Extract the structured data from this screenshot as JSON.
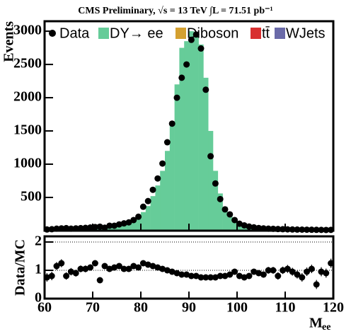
{
  "chart_data": {
    "type": "histogram",
    "title": "CMS Preliminary, √s = 13 TeV ∫L = 71.51 pb⁻¹",
    "y_label": "Events",
    "x_label": "M",
    "x_label_sub": "ee",
    "ratio_label": "Data/MC",
    "bins": [
      60,
      61,
      62,
      63,
      64,
      65,
      66,
      67,
      68,
      69,
      70,
      71,
      72,
      73,
      74,
      75,
      76,
      77,
      78,
      79,
      80,
      81,
      82,
      83,
      84,
      85,
      86,
      87,
      88,
      89,
      90,
      91,
      92,
      93,
      94,
      95,
      96,
      97,
      98,
      99,
      100,
      101,
      102,
      103,
      104,
      105,
      106,
      107,
      108,
      109,
      110,
      111,
      112,
      113,
      114,
      115,
      116,
      117,
      118,
      119,
      120
    ],
    "series": [
      {
        "name": "Data",
        "color": "#000000",
        "values": [
          18,
          22,
          30,
          35,
          38,
          30,
          35,
          38,
          42,
          48,
          55,
          60,
          45,
          75,
          75,
          95,
          110,
          125,
          160,
          210,
          360,
          445,
          615,
          785,
          1010,
          1330,
          1610,
          2000,
          2300,
          2500,
          2870,
          2950,
          2740,
          2120,
          1120,
          710,
          475,
          320,
          245,
          160,
          105,
          80,
          62,
          50,
          40,
          35,
          30,
          28,
          25,
          22,
          20,
          18,
          17,
          16,
          15,
          14,
          13,
          12,
          11,
          12
        ]
      },
      {
        "name": "DY→ ee",
        "color": "#66cc99",
        "values": [
          25,
          28,
          30,
          30,
          32,
          35,
          38,
          40,
          42,
          45,
          48,
          52,
          58,
          65,
          75,
          85,
          100,
          120,
          150,
          190,
          280,
          370,
          520,
          680,
          900,
          1200,
          1600,
          2200,
          2750,
          2850,
          3000,
          2980,
          2800,
          2300,
          1500,
          900,
          560,
          360,
          250,
          175,
          125,
          95,
          75,
          60,
          50,
          42,
          36,
          32,
          28,
          25,
          22,
          20,
          18,
          17,
          16,
          15,
          14,
          13,
          12,
          12
        ]
      },
      {
        "name": "Diboson",
        "color": "#d4a030"
      },
      {
        "name": "tt̄",
        "color": "#d83030"
      },
      {
        "name": "WJets",
        "color": "#6a6aa8"
      }
    ],
    "ratio_values": [
      0.75,
      0.8,
      1.15,
      1.25,
      0.8,
      0.95,
      0.9,
      1.05,
      1.05,
      1.1,
      1.25,
      0.65,
      1.15,
      1.05,
      1.1,
      1.15,
      1.05,
      1.05,
      1.15,
      1.1,
      1.25,
      1.2,
      1.15,
      1.1,
      1.05,
      1.0,
      0.95,
      0.9,
      0.85,
      0.85,
      0.8,
      0.8,
      0.75,
      0.75,
      0.75,
      0.75,
      0.8,
      0.8,
      0.85,
      0.95,
      0.8,
      0.75,
      0.8,
      0.95,
      0.9,
      0.85,
      1.0,
      1.0,
      0.8,
      1.0,
      1.05,
      0.95,
      0.85,
      0.75,
      0.95,
      1.05,
      0.5,
      0.95,
      0.9,
      1.25
    ],
    "ratio_errors": [
      0.15,
      0.15,
      0.14,
      0.14,
      0.13,
      0.13,
      0.12,
      0.12,
      0.12,
      0.11,
      0.11,
      0.1,
      0.1,
      0.09,
      0.09,
      0.08,
      0.08,
      0.07,
      0.06,
      0.06,
      0.05,
      0.04,
      0.04,
      0.03,
      0.03,
      0.03,
      0.02,
      0.02,
      0.02,
      0.02,
      0.02,
      0.02,
      0.02,
      0.02,
      0.02,
      0.03,
      0.04,
      0.04,
      0.05,
      0.06,
      0.07,
      0.08,
      0.09,
      0.1,
      0.1,
      0.11,
      0.12,
      0.12,
      0.13,
      0.13,
      0.14,
      0.14,
      0.14,
      0.15,
      0.15,
      0.15,
      0.16,
      0.16,
      0.16,
      0.16
    ],
    "xlim": [
      60,
      120
    ],
    "xticks": [
      60,
      70,
      80,
      90,
      100,
      110,
      120
    ],
    "ylim": [
      0,
      3150
    ],
    "yticks": [
      500,
      1000,
      1500,
      2000,
      2500,
      3000
    ],
    "ratio_ylim": [
      0,
      2.2
    ],
    "ratio_yticks": [
      0,
      1,
      2
    ],
    "ratio_gridlines": [
      1,
      2
    ]
  }
}
